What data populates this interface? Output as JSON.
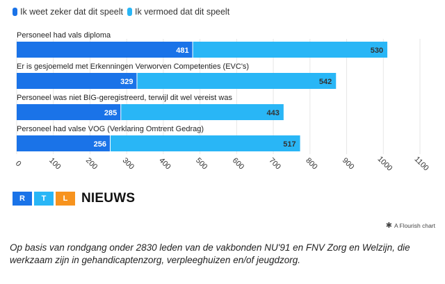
{
  "legend": [
    {
      "label": "Ik weet zeker dat dit speelt",
      "color": "#1a73e8"
    },
    {
      "label": "Ik vermoed dat dit speelt",
      "color": "#29b6f6"
    }
  ],
  "chart_data": {
    "type": "bar",
    "orientation": "horizontal",
    "stacked": true,
    "categories": [
      "Personeel had vals diploma",
      "Er is gesjoemeld met Erkenningen Verworven Competenties (EVC's)",
      "Personeel was niet BIG-geregistreerd, terwijl dit wel vereist was",
      "Personeel had valse VOG (Verklaring Omtrent Gedrag)"
    ],
    "series": [
      {
        "name": "Ik weet zeker dat dit speelt",
        "values": [
          481,
          329,
          285,
          256
        ],
        "color": "#1a73e8"
      },
      {
        "name": "Ik vermoed dat dit speelt",
        "values": [
          530,
          542,
          443,
          517
        ],
        "color": "#29b6f6"
      }
    ],
    "xlim": [
      0,
      1100
    ],
    "xticks": [
      "0",
      "100",
      "200",
      "300",
      "400",
      "500",
      "600",
      "700",
      "800",
      "900",
      "1000",
      "1100"
    ],
    "grid": true
  },
  "logo": {
    "letters": [
      "R",
      "T",
      "L"
    ],
    "colors": [
      "#1a73e8",
      "#29b6f6",
      "#f7931e"
    ],
    "word": "NIEUWS"
  },
  "credit": {
    "star": "✱",
    "text": "A Flourish chart"
  },
  "footnote": "Op basis van rondgang onder 2830 leden van de vakbonden NU'91 en FNV Zorg en Welzijn, die werkzaam zijn in gehandicaptenzorg, verpleeghuizen en/of jeugdzorg."
}
